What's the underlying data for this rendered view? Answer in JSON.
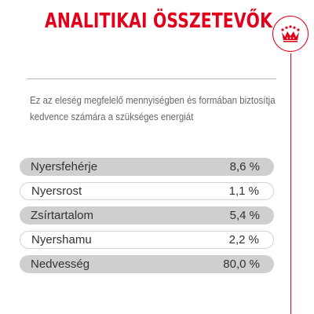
{
  "header": {
    "title": "ANALITIKAI ÖSSZETEVŐK",
    "brand_color": "#e2001a",
    "logo_icon": "crown-icon"
  },
  "description": {
    "line1": "Ez az eleség megfelelő mennyiségben és formában biztosítja",
    "line2": "kedvence számára a szükséges energiát"
  },
  "nutrients": [
    {
      "label": "Nyersfehérje",
      "value": "8,6 %"
    },
    {
      "label": "Nyersrost",
      "value": "1,1 %"
    },
    {
      "label": "Zsírtartalom",
      "value": "5,4 %"
    },
    {
      "label": "Nyershamu",
      "value": "2,2 %"
    },
    {
      "label": "Nedvesség",
      "value": "80,0 %"
    }
  ]
}
